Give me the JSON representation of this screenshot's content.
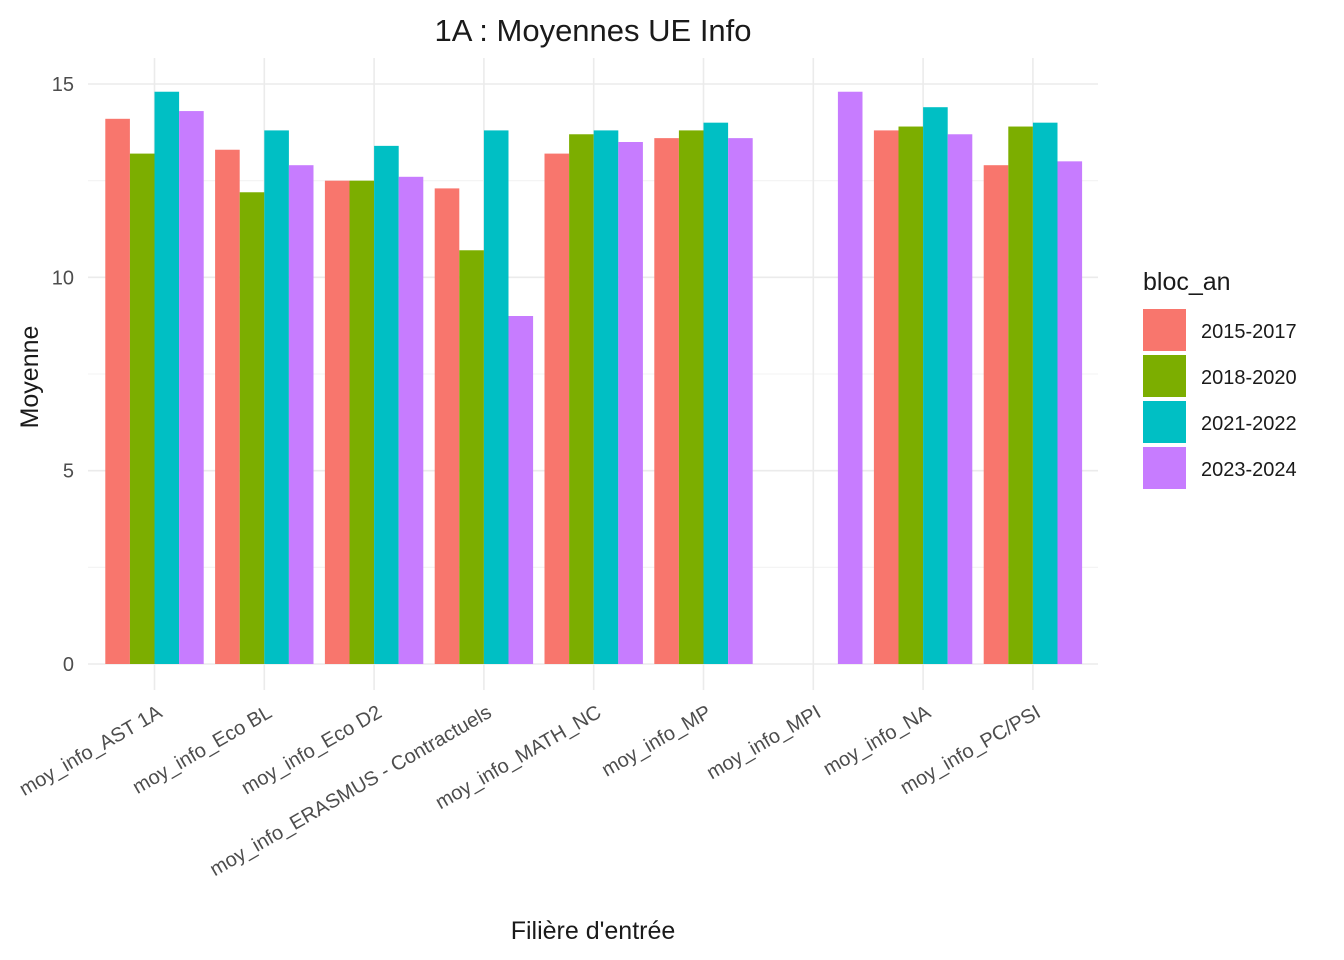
{
  "chart_data": {
    "type": "bar",
    "title": "1A : Moyennes UE Info",
    "xlabel": "Filière d'entrée",
    "ylabel": "Moyenne",
    "ylim": [
      0,
      15
    ],
    "yticks": [
      0,
      5,
      10,
      15
    ],
    "grid": true,
    "legend": {
      "title": "bloc_an",
      "position": "right"
    },
    "categories": [
      "moy_info_AST 1A",
      "moy_info_Eco BL",
      "moy_info_Eco D2",
      "moy_info_ERASMUS - Contractuels",
      "moy_info_MATH_NC",
      "moy_info_MP",
      "moy_info_MPI",
      "moy_info_NA",
      "moy_info_PC/PSI"
    ],
    "series": [
      {
        "name": "2015-2017",
        "color": "#F8766D",
        "values": [
          14.1,
          13.3,
          12.5,
          12.3,
          13.2,
          13.6,
          null,
          13.8,
          12.9
        ]
      },
      {
        "name": "2018-2020",
        "color": "#7CAE00",
        "values": [
          13.2,
          12.2,
          12.5,
          10.7,
          13.7,
          13.8,
          null,
          13.9,
          13.9
        ]
      },
      {
        "name": "2021-2022",
        "color": "#00BFC4",
        "values": [
          14.8,
          13.8,
          13.4,
          13.8,
          13.8,
          14.0,
          null,
          14.4,
          14.0
        ]
      },
      {
        "name": "2023-2024",
        "color": "#C77CFF",
        "values": [
          14.3,
          12.9,
          12.6,
          9.0,
          13.5,
          13.6,
          14.8,
          13.7,
          13.0
        ]
      }
    ]
  }
}
